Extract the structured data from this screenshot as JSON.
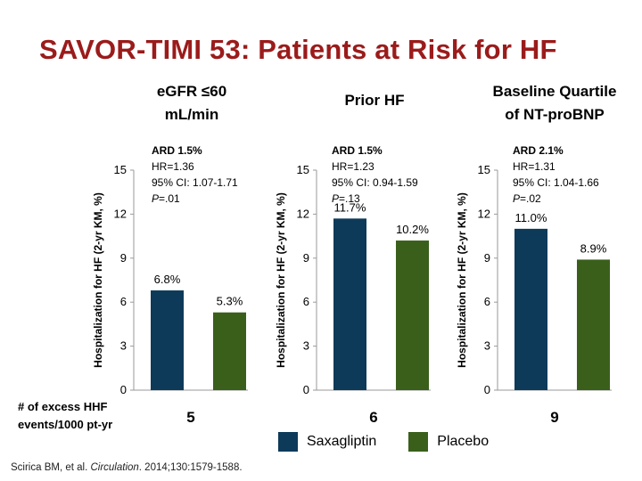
{
  "slide": {
    "title": "SAVOR-TIMI 53: Patients at Risk for HF",
    "excess_label_line1": "# of excess HHF",
    "excess_label_line2": "events/1000 pt-yr",
    "citation": {
      "authors": "Scirica BM, et al. ",
      "journal": "Circulation",
      "rest": ". 2014;130:1579-1588."
    }
  },
  "legend": [
    {
      "name": "Saxagliptin",
      "color": "#0e3a5a"
    },
    {
      "name": "Placebo",
      "color": "#3a5f1b"
    }
  ],
  "chart_data": [
    {
      "type": "bar",
      "title": [
        "eGFR ≤60",
        "mL/min"
      ],
      "ylabel": "Hospitalization  for HF (2-yr KM, %)",
      "ylim": [
        0,
        15
      ],
      "yticks": [
        0,
        3,
        6,
        9,
        12,
        15
      ],
      "categories": [
        "Saxagliptin",
        "Placebo"
      ],
      "values": [
        6.8,
        5.3
      ],
      "value_labels": [
        "6.8%",
        "5.3%"
      ],
      "colors": [
        "#0e3a5a",
        "#3a5f1b"
      ],
      "stats": {
        "ard": "ARD 1.5%",
        "hr": "HR=1.36",
        "ci": "95% CI: 1.07-1.71",
        "p_prefix": "P",
        "p_value": "=.01"
      },
      "excess_events": "5"
    },
    {
      "type": "bar",
      "title": [
        "Prior HF"
      ],
      "ylabel": "Hospitalization  for HF (2-yr KM, %)",
      "ylim": [
        0,
        15
      ],
      "yticks": [
        0,
        3,
        6,
        9,
        12,
        15
      ],
      "categories": [
        "Saxagliptin",
        "Placebo"
      ],
      "values": [
        11.7,
        10.2
      ],
      "value_labels": [
        "11.7%",
        "10.2%"
      ],
      "colors": [
        "#0e3a5a",
        "#3a5f1b"
      ],
      "stats": {
        "ard": "ARD 1.5%",
        "hr": "HR=1.23",
        "ci": "95% CI: 0.94-1.59",
        "p_prefix": "P",
        "p_value": "=.13"
      },
      "excess_events": "6"
    },
    {
      "type": "bar",
      "title": [
        "Baseline Quartile",
        "of NT-proBNP"
      ],
      "ylabel": "Hospitalization  for HF (2-yr KM, %)",
      "ylim": [
        0,
        15
      ],
      "yticks": [
        0,
        3,
        6,
        9,
        12,
        15
      ],
      "categories": [
        "Saxagliptin",
        "Placebo"
      ],
      "values": [
        11.0,
        8.9
      ],
      "value_labels": [
        "11.0%",
        "8.9%"
      ],
      "colors": [
        "#0e3a5a",
        "#3a5f1b"
      ],
      "stats": {
        "ard": "ARD 2.1%",
        "hr": "HR=1.31",
        "ci": "95% CI: 1.04-1.66",
        "p_prefix": "P",
        "p_value": "=.02"
      },
      "excess_events": "9"
    }
  ]
}
